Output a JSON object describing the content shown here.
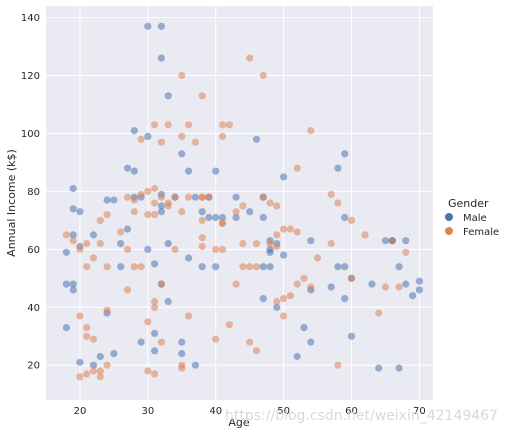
{
  "chart_data": {
    "type": "scatter",
    "title": "",
    "xlabel": "Age",
    "ylabel": "Annual Income (k$)",
    "xlim": [
      15,
      72
    ],
    "ylim": [
      8,
      144
    ],
    "xticks": [
      20,
      30,
      40,
      50,
      60,
      70
    ],
    "yticks": [
      20,
      40,
      60,
      80,
      100,
      120,
      140
    ],
    "grid": true,
    "legend": {
      "title": "Gender",
      "placement": "right"
    },
    "series": [
      {
        "name": "Male",
        "color": "#4c72b0",
        "points": [
          [
            30,
            137
          ],
          [
            32,
            137
          ],
          [
            32,
            126
          ],
          [
            33,
            113
          ],
          [
            28,
            101
          ],
          [
            30,
            99
          ],
          [
            46,
            98
          ],
          [
            59,
            93
          ],
          [
            35,
            93
          ],
          [
            36,
            87
          ],
          [
            40,
            87
          ],
          [
            28,
            87
          ],
          [
            27,
            88
          ],
          [
            50,
            85
          ],
          [
            58,
            88
          ],
          [
            32,
            79
          ],
          [
            34,
            78
          ],
          [
            37,
            78
          ],
          [
            39,
            78
          ],
          [
            43,
            78
          ],
          [
            47,
            78
          ],
          [
            28,
            78
          ],
          [
            29,
            78
          ],
          [
            32,
            75
          ],
          [
            32,
            73
          ],
          [
            38,
            73
          ],
          [
            39,
            71
          ],
          [
            40,
            71
          ],
          [
            41,
            71
          ],
          [
            43,
            71
          ],
          [
            47,
            71
          ],
          [
            59,
            71
          ],
          [
            48,
            63
          ],
          [
            54,
            63
          ],
          [
            65,
            63
          ],
          [
            66,
            63
          ],
          [
            68,
            63
          ],
          [
            24,
            77
          ],
          [
            25,
            77
          ],
          [
            26,
            62
          ],
          [
            22,
            65
          ],
          [
            19,
            65
          ],
          [
            20,
            73
          ],
          [
            19,
            74
          ],
          [
            19,
            81
          ],
          [
            20,
            61
          ],
          [
            18,
            59
          ],
          [
            18,
            48
          ],
          [
            19,
            48
          ],
          [
            19,
            46
          ],
          [
            18,
            33
          ],
          [
            20,
            21
          ],
          [
            22,
            20
          ],
          [
            23,
            23
          ],
          [
            25,
            24
          ],
          [
            29,
            28
          ],
          [
            31,
            25
          ],
          [
            31,
            31
          ],
          [
            33,
            42
          ],
          [
            35,
            28
          ],
          [
            35,
            24
          ],
          [
            37,
            20
          ],
          [
            40,
            54
          ],
          [
            38,
            54
          ],
          [
            36,
            57
          ],
          [
            26,
            54
          ],
          [
            33,
            62
          ],
          [
            31,
            55
          ],
          [
            27,
            67
          ],
          [
            30,
            60
          ],
          [
            47,
            54
          ],
          [
            48,
            54
          ],
          [
            48,
            60
          ],
          [
            49,
            62
          ],
          [
            48,
            59
          ],
          [
            47,
            43
          ],
          [
            49,
            40
          ],
          [
            50,
            58
          ],
          [
            52,
            23
          ],
          [
            53,
            33
          ],
          [
            54,
            28
          ],
          [
            57,
            47
          ],
          [
            58,
            54
          ],
          [
            59,
            54
          ],
          [
            59,
            43
          ],
          [
            60,
            30
          ],
          [
            63,
            48
          ],
          [
            64,
            19
          ],
          [
            66,
            63
          ],
          [
            67,
            54
          ],
          [
            67,
            19
          ],
          [
            68,
            48
          ],
          [
            69,
            44
          ],
          [
            70,
            46
          ],
          [
            70,
            49
          ],
          [
            60,
            50
          ],
          [
            45,
            73
          ],
          [
            24,
            38
          ],
          [
            32,
            48
          ],
          [
            54,
            46
          ]
        ]
      },
      {
        "name": "Female",
        "color": "#dd8452",
        "points": [
          [
            35,
            120
          ],
          [
            38,
            113
          ],
          [
            45,
            126
          ],
          [
            47,
            120
          ],
          [
            41,
            103
          ],
          [
            42,
            103
          ],
          [
            31,
            103
          ],
          [
            33,
            103
          ],
          [
            36,
            103
          ],
          [
            41,
            99
          ],
          [
            54,
            101
          ],
          [
            29,
            98
          ],
          [
            32,
            97
          ],
          [
            35,
            99
          ],
          [
            37,
            97
          ],
          [
            29,
            79
          ],
          [
            30,
            80
          ],
          [
            31,
            81
          ],
          [
            32,
            78
          ],
          [
            34,
            78
          ],
          [
            36,
            78
          ],
          [
            38,
            78
          ],
          [
            31,
            76
          ],
          [
            33,
            76
          ],
          [
            27,
            78
          ],
          [
            28,
            77
          ],
          [
            24,
            72
          ],
          [
            23,
            70
          ],
          [
            28,
            73
          ],
          [
            30,
            72
          ],
          [
            31,
            72
          ],
          [
            33,
            75
          ],
          [
            35,
            73
          ],
          [
            38,
            70
          ],
          [
            41,
            69
          ],
          [
            43,
            73
          ],
          [
            44,
            75
          ],
          [
            47,
            78
          ],
          [
            48,
            76
          ],
          [
            49,
            75
          ],
          [
            52,
            88
          ],
          [
            57,
            79
          ],
          [
            58,
            76
          ],
          [
            60,
            70
          ],
          [
            52,
            66
          ],
          [
            51,
            67
          ],
          [
            50,
            67
          ],
          [
            49,
            65
          ],
          [
            49,
            61
          ],
          [
            46,
            62
          ],
          [
            48,
            62
          ],
          [
            21,
            62
          ],
          [
            23,
            62
          ],
          [
            22,
            57
          ],
          [
            24,
            54
          ],
          [
            21,
            54
          ],
          [
            18,
            65
          ],
          [
            19,
            63
          ],
          [
            20,
            60
          ],
          [
            21,
            33
          ],
          [
            21,
            30
          ],
          [
            20,
            37
          ],
          [
            22,
            29
          ],
          [
            21,
            17
          ],
          [
            20,
            16
          ],
          [
            23,
            16
          ],
          [
            22,
            18
          ],
          [
            23,
            18
          ],
          [
            24,
            20
          ],
          [
            24,
            39
          ],
          [
            27,
            46
          ],
          [
            28,
            54
          ],
          [
            29,
            54
          ],
          [
            30,
            35
          ],
          [
            30,
            18
          ],
          [
            31,
            17
          ],
          [
            32,
            28
          ],
          [
            31,
            42
          ],
          [
            31,
            40
          ],
          [
            32,
            48
          ],
          [
            34,
            60
          ],
          [
            35,
            20
          ],
          [
            35,
            19
          ],
          [
            36,
            37
          ],
          [
            38,
            61
          ],
          [
            38,
            64
          ],
          [
            38,
            78
          ],
          [
            39,
            78
          ],
          [
            40,
            29
          ],
          [
            41,
            60
          ],
          [
            42,
            34
          ],
          [
            43,
            48
          ],
          [
            44,
            54
          ],
          [
            45,
            54
          ],
          [
            46,
            54
          ],
          [
            45,
            28
          ],
          [
            46,
            25
          ],
          [
            49,
            42
          ],
          [
            50,
            43
          ],
          [
            51,
            44
          ],
          [
            50,
            37
          ],
          [
            52,
            48
          ],
          [
            53,
            50
          ],
          [
            54,
            47
          ],
          [
            55,
            57
          ],
          [
            57,
            62
          ],
          [
            58,
            20
          ],
          [
            60,
            50
          ],
          [
            62,
            65
          ],
          [
            64,
            38
          ],
          [
            65,
            47
          ],
          [
            66,
            63
          ],
          [
            67,
            47
          ],
          [
            68,
            59
          ],
          [
            40,
            60
          ],
          [
            41,
            69
          ],
          [
            44,
            62
          ],
          [
            27,
            60
          ],
          [
            26,
            66
          ]
        ]
      }
    ]
  },
  "watermark": "https://blog.csdn.net/weixin_42149467"
}
